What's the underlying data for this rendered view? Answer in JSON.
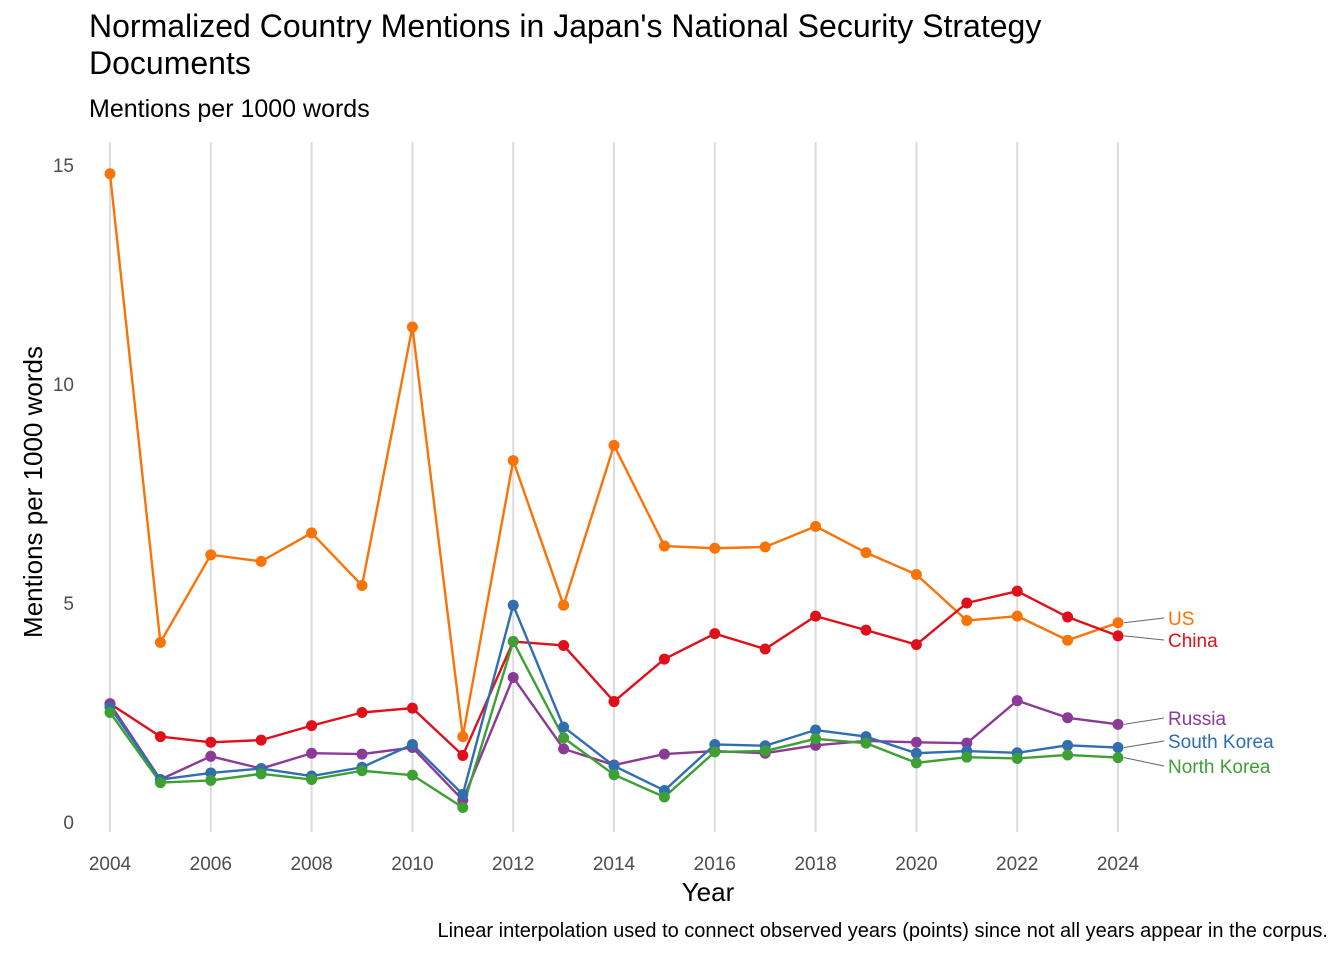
{
  "chart_data": {
    "type": "line",
    "title": "Normalized Country Mentions in Japan's National Security Strategy Documents",
    "subtitle": "Mentions per 1000 words",
    "xlabel": "Year",
    "ylabel": "Mentions per 1000 words",
    "caption": "Linear interpolation used to connect observed years (points) since not all years appear in the corpus.",
    "x": [
      2004,
      2005,
      2006,
      2007,
      2008,
      2009,
      2010,
      2011,
      2012,
      2013,
      2014,
      2015,
      2016,
      2017,
      2018,
      2019,
      2020,
      2021,
      2022,
      2023,
      2024
    ],
    "x_ticks": [
      "2004",
      "2006",
      "2008",
      "2010",
      "2012",
      "2014",
      "2016",
      "2018",
      "2020",
      "2022",
      "2024"
    ],
    "y_ticks": [
      "0",
      "5",
      "10",
      "15"
    ],
    "xlim": [
      2004,
      2024
    ],
    "ylim": [
      0,
      15
    ],
    "grid": "vertical major gridlines",
    "legend": "direct labels at right end of lines",
    "series": [
      {
        "name": "US",
        "color": "#F97306",
        "values": [
          14.8,
          4.1,
          6.1,
          5.95,
          6.6,
          5.4,
          11.3,
          1.95,
          8.25,
          4.95,
          8.6,
          6.3,
          6.25,
          6.28,
          6.75,
          6.15,
          5.65,
          4.6,
          4.7,
          4.15,
          4.55
        ]
      },
      {
        "name": "China",
        "color": "#E0101B",
        "values": [
          2.7,
          1.95,
          1.82,
          1.87,
          2.2,
          2.5,
          2.6,
          1.52,
          4.12,
          4.03,
          2.75,
          3.72,
          4.3,
          3.95,
          4.7,
          4.38,
          4.05,
          5.0,
          5.27,
          4.68,
          4.25
        ]
      },
      {
        "name": "Russia",
        "color": "#8B3A96",
        "values": [
          2.7,
          0.97,
          1.5,
          1.22,
          1.57,
          1.55,
          1.7,
          0.5,
          3.3,
          1.67,
          1.3,
          1.55,
          1.62,
          1.57,
          1.75,
          1.85,
          1.82,
          1.8,
          2.77,
          2.38,
          2.23
        ]
      },
      {
        "name": "South Korea",
        "color": "#2F6EAF",
        "values": [
          2.62,
          0.97,
          1.12,
          1.22,
          1.05,
          1.25,
          1.77,
          0.63,
          4.95,
          2.17,
          1.28,
          0.72,
          1.77,
          1.74,
          2.1,
          1.95,
          1.57,
          1.62,
          1.58,
          1.75,
          1.7
        ]
      },
      {
        "name": "North Korea",
        "color": "#3EA034",
        "values": [
          2.5,
          0.9,
          0.95,
          1.1,
          0.97,
          1.17,
          1.07,
          0.33,
          4.12,
          1.92,
          1.08,
          0.57,
          1.6,
          1.62,
          1.9,
          1.8,
          1.35,
          1.48,
          1.45,
          1.53,
          1.47
        ]
      }
    ]
  }
}
